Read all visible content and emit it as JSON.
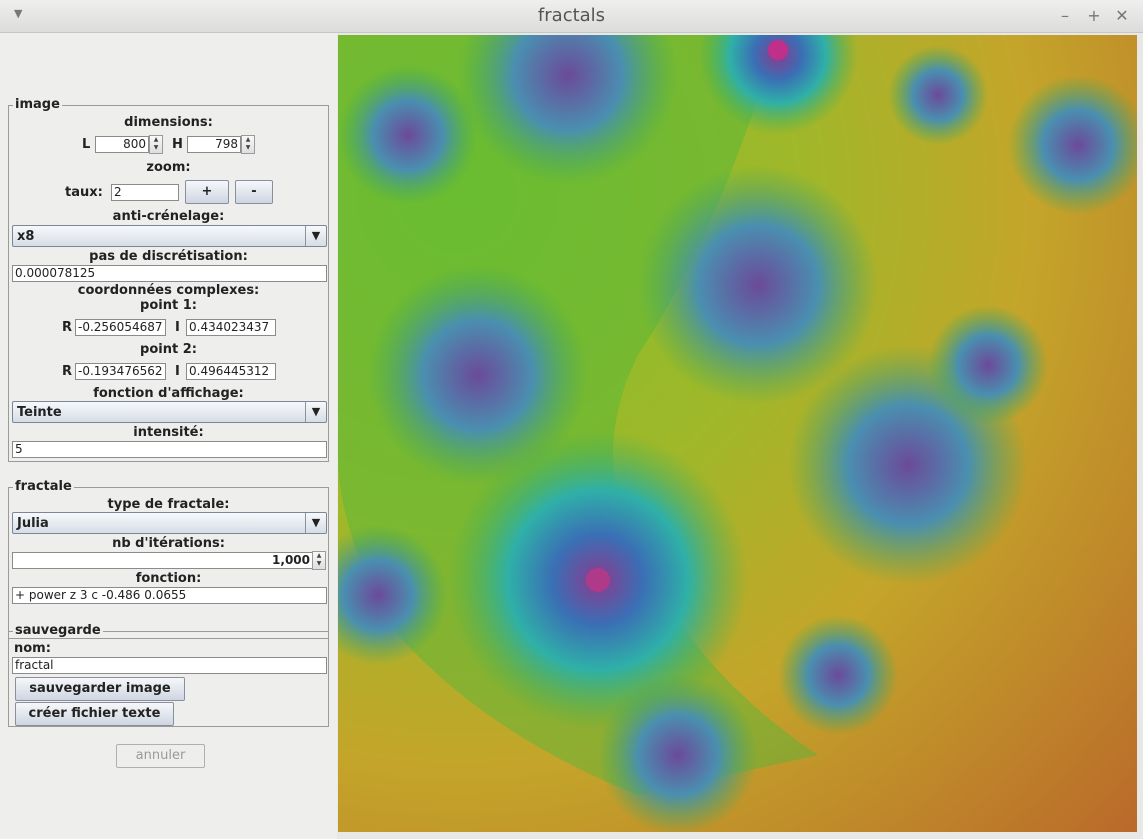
{
  "window": {
    "title": "fractals"
  },
  "image_group": {
    "legend": "image",
    "dimensions_label": "dimensions:",
    "width_label": "L",
    "width_value": "800",
    "height_label": "H",
    "height_value": "798",
    "zoom_label": "zoom:",
    "rate_label": "taux:",
    "rate_value": "2",
    "zoom_in_label": "+",
    "zoom_out_label": "-",
    "antialias_label": "anti-crénelage:",
    "antialias_value": "x8",
    "step_label": "pas de discrétisation:",
    "step_value": "0.000078125",
    "coords_label": "coordonnées complexes:",
    "point1_label": "point 1:",
    "point1_r_label": "R",
    "point1_r_value": "-0.256054687",
    "point1_i_label": "I",
    "point1_i_value": "0.434023437",
    "point2_label": "point 2:",
    "point2_r_label": "R",
    "point2_r_value": "-0.193476562",
    "point2_i_label": "I",
    "point2_i_value": "0.496445312",
    "display_fn_label": "fonction d'affichage:",
    "display_fn_value": "Teinte",
    "intensity_label": "intensité:",
    "intensity_value": "5"
  },
  "fractal_group": {
    "legend": "fractale",
    "type_label": "type de fractale:",
    "type_value": "Julia",
    "iterations_label": "nb d'itérations:",
    "iterations_value": "1,000",
    "function_label": "fonction:",
    "function_value": "+ power z 3 c -0.486 0.0655"
  },
  "save_group": {
    "legend": "sauvegarde",
    "name_label": "nom:",
    "name_value": "fractal",
    "save_image_label": "sauvegarder image",
    "create_text_label": "créer fichier texte"
  },
  "cancel_label": "annuler",
  "colors": {
    "accent": "#cfd6e1",
    "background": "#eeeeec"
  }
}
